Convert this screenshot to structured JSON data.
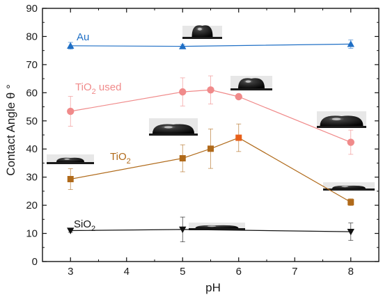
{
  "chart_data": {
    "type": "line",
    "xlabel": "pH",
    "ylabel": "Contact Angle θ °",
    "xlim": [
      2.5,
      8.5
    ],
    "ylim": [
      0,
      90
    ],
    "xticks": [
      3,
      4,
      5,
      6,
      7,
      8
    ],
    "yticks": [
      0,
      10,
      20,
      30,
      40,
      50,
      60,
      70,
      80,
      90
    ],
    "grid": false,
    "series": [
      {
        "name": "Au",
        "color": "#1f6fc5",
        "marker": "triangle-up",
        "label_parts": [
          "Au",
          "",
          ""
        ],
        "x": [
          3,
          5,
          8
        ],
        "y": [
          76.7,
          76.5,
          77.3
        ],
        "err": [
          1.2,
          0.6,
          1.5
        ]
      },
      {
        "name": "TiO2 used",
        "color": "#f08a8a",
        "marker": "circle",
        "label_parts": [
          "TiO",
          "2",
          " used"
        ],
        "x": [
          3,
          5,
          5.5,
          6,
          8
        ],
        "y": [
          53.4,
          60.3,
          61.0,
          58.6,
          42.4
        ],
        "err": [
          5.3,
          5.0,
          5.0,
          0.5,
          4.3
        ]
      },
      {
        "name": "TiO2",
        "color": "#b06a1a",
        "marker": "square",
        "highlight": "#e8601a",
        "label_parts": [
          "TiO",
          "2",
          ""
        ],
        "x": [
          3,
          5,
          5.5,
          6,
          8
        ],
        "y": [
          29.3,
          36.7,
          40.1,
          44.0,
          21.1
        ],
        "err": [
          3.7,
          4.8,
          7.0,
          4.9,
          1.2
        ]
      },
      {
        "name": "SiO2",
        "color": "#111111",
        "marker": "triangle-down",
        "label_parts": [
          "SiO",
          "2",
          ""
        ],
        "x": [
          3,
          5,
          8
        ],
        "y": [
          11.0,
          11.4,
          10.6
        ],
        "err": [
          0.6,
          4.4,
          3.1
        ]
      }
    ],
    "droplet_images": [
      {
        "kind": "tall"
      },
      {
        "kind": "medium"
      },
      {
        "kind": "wide"
      },
      {
        "kind": "wide"
      },
      {
        "kind": "flat"
      },
      {
        "kind": "flat"
      },
      {
        "kind": "very-flat"
      }
    ]
  }
}
